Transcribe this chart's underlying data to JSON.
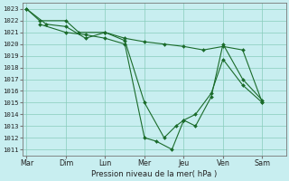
{
  "xlabel": "Pression niveau de la mer( hPa )",
  "background_color": "#c8eef0",
  "grid_color": "#88ccbb",
  "line_color": "#1a6b2a",
  "ylim": [
    1010.5,
    1023.5
  ],
  "yticks": [
    1011,
    1012,
    1013,
    1014,
    1015,
    1016,
    1017,
    1018,
    1019,
    1020,
    1021,
    1022,
    1023
  ],
  "x_labels": [
    "Mar",
    "Dim",
    "Lun",
    "Mer",
    "Jeu",
    "Ven",
    "Sam"
  ],
  "x_ticks": [
    0,
    1,
    2,
    3,
    4,
    5,
    6
  ],
  "xlim": [
    -0.1,
    6.6
  ],
  "line1": {
    "x": [
      0,
      0.33,
      1.0,
      1.33,
      2.0,
      2.5,
      3.0,
      3.5,
      4.0,
      4.5,
      5.0,
      5.5,
      6.0
    ],
    "y": [
      1023,
      1022,
      1022,
      1021,
      1021,
      1020.5,
      1020.2,
      1020.0,
      1019.8,
      1019.5,
      1019.8,
      1019.5,
      1015.0
    ]
  },
  "line2": {
    "x": [
      0,
      0.5,
      1.0,
      1.5,
      2.0,
      2.5,
      3.0,
      3.5,
      3.8,
      4.0,
      4.3,
      4.7,
      5.0,
      5.5,
      6.0
    ],
    "y": [
      1023,
      1021.7,
      1021.5,
      1020.5,
      1021.0,
      1020.3,
      1015.0,
      1012.0,
      1013.0,
      1013.5,
      1013.0,
      1015.5,
      1020.0,
      1017.0,
      1015.2
    ]
  },
  "line3": {
    "x": [
      0.33,
      1.0,
      1.5,
      2.0,
      2.5,
      3.0,
      3.3,
      3.7,
      4.0,
      4.3,
      4.7,
      5.0,
      5.5,
      6.0
    ],
    "y": [
      1021.7,
      1021.0,
      1020.8,
      1020.5,
      1020.0,
      1012.0,
      1011.7,
      1011.0,
      1013.5,
      1014.0,
      1015.8,
      1018.7,
      1016.5,
      1015.0
    ]
  }
}
